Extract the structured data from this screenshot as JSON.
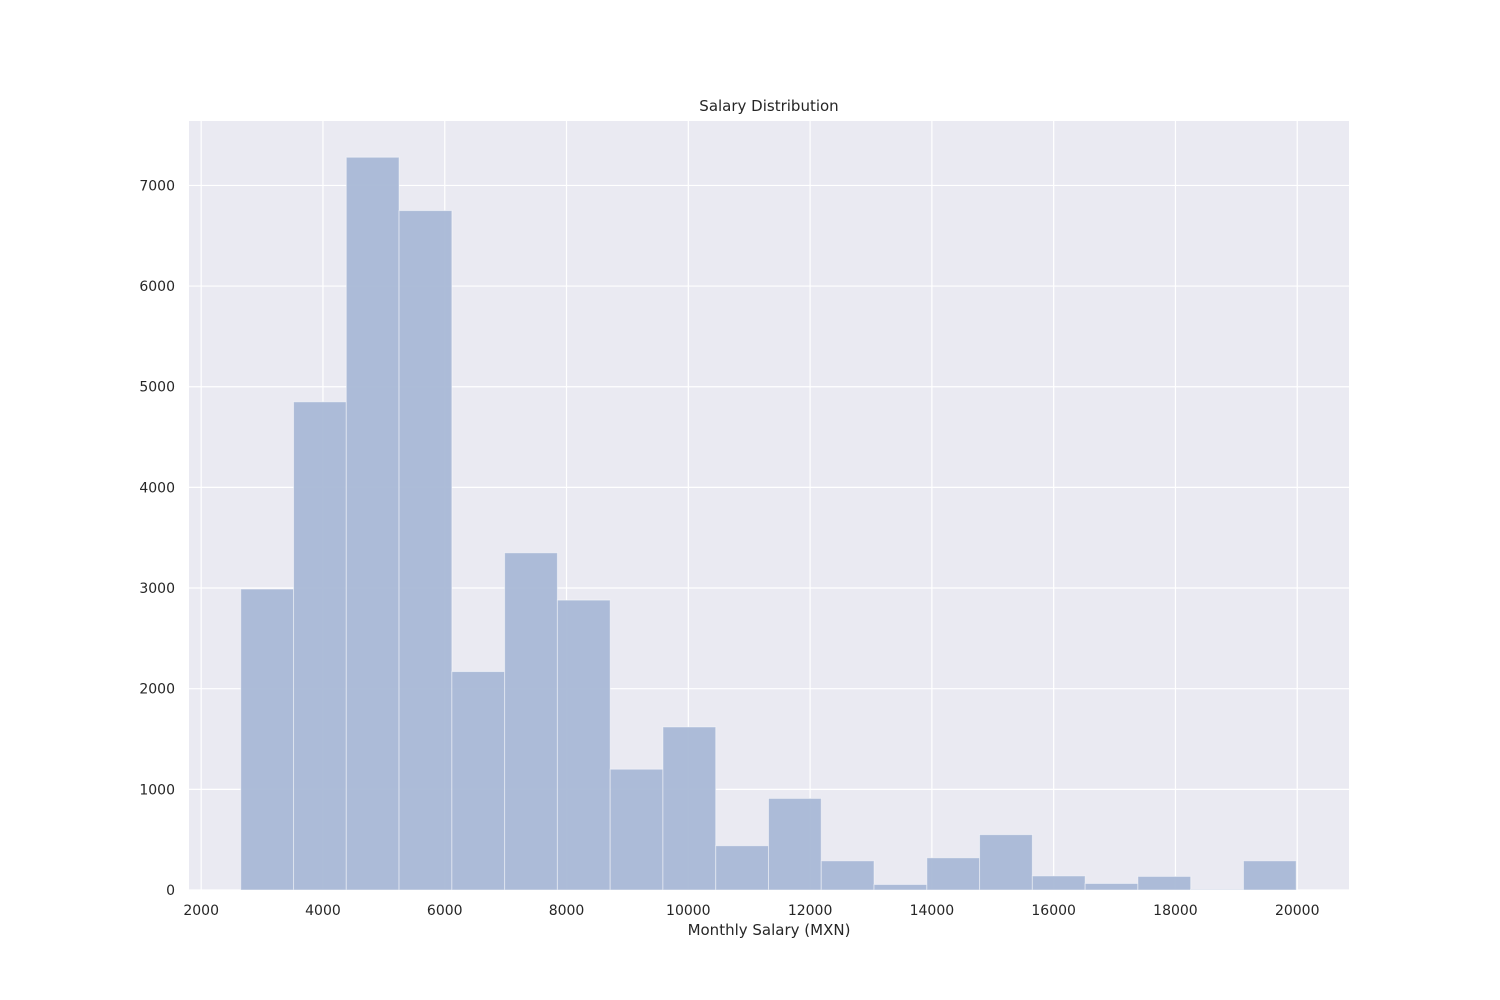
{
  "chart_data": {
    "type": "bar",
    "title": "Salary Distribution",
    "xlabel": "Monthly Salary (MXN)",
    "ylabel": "",
    "xlim": [
      1800,
      20850
    ],
    "ylim": [
      0,
      7640
    ],
    "x_ticks": [
      2000,
      4000,
      6000,
      8000,
      10000,
      12000,
      14000,
      16000,
      18000,
      20000
    ],
    "y_ticks": [
      0,
      1000,
      2000,
      3000,
      4000,
      5000,
      6000,
      7000
    ],
    "grid": true,
    "bar_color": "#a9b8d6",
    "background_color": "#eaeaf2",
    "bins": [
      {
        "start": 2650,
        "end": 3517,
        "count": 2990
      },
      {
        "start": 3517,
        "end": 4383,
        "count": 4850
      },
      {
        "start": 4383,
        "end": 5250,
        "count": 7280
      },
      {
        "start": 5250,
        "end": 6117,
        "count": 6750
      },
      {
        "start": 6117,
        "end": 6983,
        "count": 2170
      },
      {
        "start": 6983,
        "end": 7850,
        "count": 3350
      },
      {
        "start": 7850,
        "end": 8717,
        "count": 2880
      },
      {
        "start": 8717,
        "end": 9583,
        "count": 1200
      },
      {
        "start": 9583,
        "end": 10450,
        "count": 1620
      },
      {
        "start": 10450,
        "end": 11317,
        "count": 440
      },
      {
        "start": 11317,
        "end": 12183,
        "count": 910
      },
      {
        "start": 12183,
        "end": 13050,
        "count": 290
      },
      {
        "start": 13050,
        "end": 13917,
        "count": 55
      },
      {
        "start": 13917,
        "end": 14783,
        "count": 320
      },
      {
        "start": 14783,
        "end": 15650,
        "count": 550
      },
      {
        "start": 15650,
        "end": 16517,
        "count": 140
      },
      {
        "start": 16517,
        "end": 17383,
        "count": 65
      },
      {
        "start": 17383,
        "end": 18250,
        "count": 135
      },
      {
        "start": 18250,
        "end": 19117,
        "count": 5
      },
      {
        "start": 19117,
        "end": 19983,
        "count": 290
      }
    ]
  }
}
